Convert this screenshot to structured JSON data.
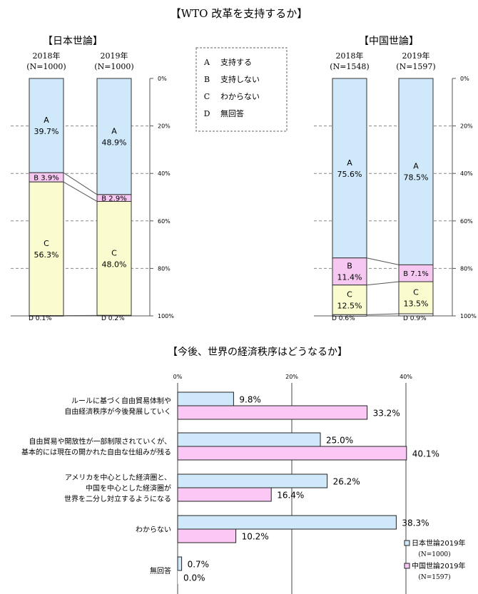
{
  "colors": {
    "A": "#cfe9fb",
    "B": "#f6c8f1",
    "C": "#fbfbd0",
    "D": "#ffffff",
    "jp": "#cfe9fb",
    "cn": "#fbc8f6",
    "grid": "#888888"
  },
  "top": {
    "title": "【WTO 改革を支持するか】",
    "legend": [
      {
        "key": "A",
        "label": "支持する"
      },
      {
        "key": "B",
        "label": "支持しない"
      },
      {
        "key": "C",
        "label": "わからない"
      },
      {
        "key": "D",
        "label": "無回答"
      }
    ]
  },
  "chart_data": [
    {
      "type": "bar",
      "title": "【日本世論】",
      "stacked": true,
      "ylim": [
        0,
        100
      ],
      "y_ticks": [
        "0%",
        "20%",
        "40%",
        "60%",
        "80%",
        "100%"
      ],
      "columns": [
        {
          "year": "2018年",
          "n": "(N=1000)"
        },
        {
          "year": "2019年",
          "n": "(N=1000)"
        }
      ],
      "series": [
        {
          "key": "A",
          "values": [
            39.7,
            48.9
          ],
          "labels": [
            "A\n39.7%",
            "A\n48.9%"
          ]
        },
        {
          "key": "B",
          "values": [
            3.9,
            2.9
          ],
          "labels": [
            "B 3.9%",
            "B 2.9%"
          ]
        },
        {
          "key": "C",
          "values": [
            56.3,
            48.0
          ],
          "labels": [
            "C\n56.3%",
            "C\n48.0%"
          ]
        },
        {
          "key": "D",
          "values": [
            0.1,
            0.2
          ],
          "labels": [
            "D 0.1%",
            "D 0.2%"
          ]
        }
      ]
    },
    {
      "type": "bar",
      "title": "【中国世論】",
      "stacked": true,
      "ylim": [
        0,
        100
      ],
      "y_ticks": [
        "0%",
        "20%",
        "40%",
        "60%",
        "80%",
        "100%"
      ],
      "columns": [
        {
          "year": "2018年",
          "n": "(N=1548)"
        },
        {
          "year": "2019年",
          "n": "(N=1597)"
        }
      ],
      "series": [
        {
          "key": "A",
          "values": [
            75.6,
            78.5
          ],
          "labels": [
            "A\n75.6%",
            "A\n78.5%"
          ]
        },
        {
          "key": "B",
          "values": [
            11.4,
            7.1
          ],
          "labels": [
            "B\n11.4%",
            "B 7.1%"
          ]
        },
        {
          "key": "C",
          "values": [
            12.5,
            13.5
          ],
          "labels": [
            "C\n12.5%",
            "C\n13.5%"
          ]
        },
        {
          "key": "D",
          "values": [
            0.6,
            0.9
          ],
          "labels": [
            "D 0.6%",
            "D 0.9%"
          ]
        }
      ]
    },
    {
      "type": "bar",
      "orientation": "horizontal",
      "title": "【今後、世界の経済秩序はどうなるか】",
      "xlim": [
        0,
        40
      ],
      "x_ticks": [
        "0%",
        "20%",
        "40%"
      ],
      "categories": [
        [
          "ルールに基づく自由貿易体制や",
          "自由経済秩序が今後発展していく"
        ],
        [
          "自由貿易や開放性が一部制限されていくが、",
          "基本的には現在の開かれた自由な仕組みが残る"
        ],
        [
          "アメリカを中心とした経済圏と、",
          "中国を中心とした経済圏が",
          "世界を二分し対立するようになる"
        ],
        [
          "わからない"
        ],
        [
          "無回答"
        ]
      ],
      "series": [
        {
          "name": "日本世論2019年",
          "n": "(N=1000)",
          "color_key": "jp",
          "values": [
            9.8,
            25.0,
            26.2,
            38.3,
            0.7
          ],
          "labels": [
            "9.8%",
            "25.0%",
            "26.2%",
            "38.3%",
            "0.7%"
          ]
        },
        {
          "name": "中国世論2019年",
          "n": "(N=1597)",
          "color_key": "cn",
          "values": [
            33.2,
            40.1,
            16.4,
            10.2,
            0.0
          ],
          "labels": [
            "33.2%",
            "40.1%",
            "16.4%",
            "10.2%",
            "0.0%"
          ]
        }
      ]
    }
  ]
}
